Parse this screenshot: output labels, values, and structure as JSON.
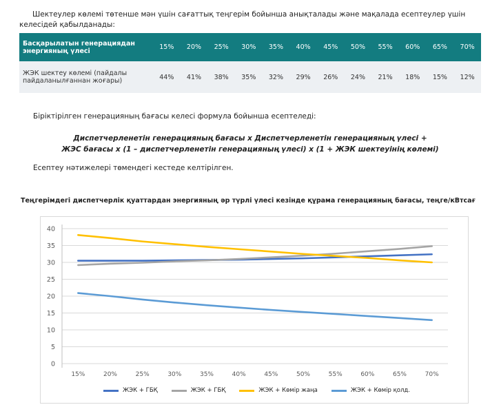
{
  "intro_text": "Шектеулер көлемі төтенше мән үшін сағаттық теңгерім бойынша анықталады және мақалада есептеулер үшін келесідей қабылданады:",
  "table": {
    "header_label": "Басқарылатын генерациядан энергияның үлесі",
    "headers": [
      "15%",
      "20%",
      "25%",
      "30%",
      "35%",
      "40%",
      "45%",
      "50%",
      "55%",
      "60%",
      "65%",
      "70%"
    ],
    "row_label": "ЖЭК шектеу көлемі (пайдалы пайдаланылғаннан жоғары)",
    "values": [
      "44%",
      "41%",
      "38%",
      "35%",
      "32%",
      "29%",
      "26%",
      "24%",
      "21%",
      "18%",
      "15%",
      "12%"
    ]
  },
  "formula_intro": "Біріктірілген генерацияның бағасы келесі формула бойынша есептеледі:",
  "formula_line1": "Диспетчерленетін генерацияның бағасы x Диспетчерленетін генерацияның үлесі +",
  "formula_line2": "ЖЭС бағасы x (1 – диспетчерленетін генерацияның үлесі) x (1 + ЖЭК шектеуінің көлемі)",
  "results_text": "Есептеу нәтижелері төмендегі кестеде келтірілген.",
  "chart_data": {
    "type": "line",
    "title": "Теңгерімдегі диспетчерлік қуаттардан энергияның әр түрлі үлесі кезінде құрама генерацияның бағасы, теңге/кВтсағ",
    "categories": [
      "15%",
      "20%",
      "25%",
      "30%",
      "35%",
      "40%",
      "45%",
      "50%",
      "55%",
      "60%",
      "65%",
      "70%"
    ],
    "ylim": [
      0,
      40
    ],
    "yticks": [
      0,
      5,
      10,
      15,
      20,
      25,
      30,
      35,
      40
    ],
    "grid": true,
    "legend": "bottom",
    "series": [
      {
        "name": "ЖЭК + ГБҚ",
        "color": "#4472c4",
        "values": [
          30.5,
          30.5,
          30.5,
          30.6,
          30.7,
          30.8,
          31.0,
          31.2,
          31.5,
          31.8,
          32.1,
          32.4
        ]
      },
      {
        "name": "ЖЭК + ГБҚ",
        "color": "#a5a5a5",
        "values": [
          29.2,
          29.6,
          29.9,
          30.3,
          30.6,
          31.0,
          31.5,
          32.0,
          32.6,
          33.3,
          34.0,
          34.8
        ]
      },
      {
        "name": "ЖЭК + Көмір жаңа",
        "color": "#ffc000",
        "values": [
          38.1,
          37.2,
          36.2,
          35.4,
          34.6,
          33.9,
          33.2,
          32.5,
          31.9,
          31.3,
          30.6,
          30.0
        ]
      },
      {
        "name": "ЖЭК + Көмір қолд.",
        "color": "#5b9bd5",
        "values": [
          20.9,
          20.0,
          19.0,
          18.1,
          17.3,
          16.6,
          15.9,
          15.3,
          14.7,
          14.1,
          13.5,
          12.9
        ]
      }
    ]
  }
}
